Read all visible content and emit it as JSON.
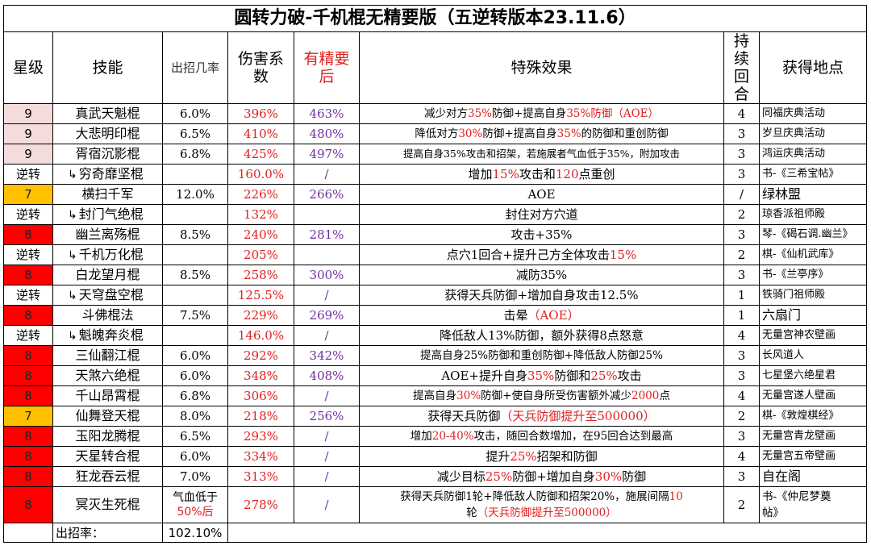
{
  "title": "圆转力破-千机棍无精要版（五逆转版本23.11.6）",
  "headers": {
    "star": "星级",
    "skill": "技能",
    "rate": "出招几率",
    "coef": "伤害系数",
    "coef_ess": "有精要后",
    "effect": "特殊效果",
    "duration": "持续回合",
    "source": "获得地点"
  },
  "rows": [
    {
      "star": "9",
      "star_color": "#f4dcdc",
      "skill": "真武天魁棍",
      "sub": false,
      "rate": "6.0%",
      "coef": "396%",
      "coef_ess": "463%",
      "effect_parts": [
        {
          "t": "减少对方"
        },
        {
          "t": "35%",
          "c": "red"
        },
        {
          "t": "防御+提高自身"
        },
        {
          "t": "35%",
          "c": "red"
        },
        {
          "t": "防御（AOE）",
          "c": "red2"
        }
      ],
      "duration": "4",
      "source": "同福庆典活动"
    },
    {
      "star": "9",
      "star_color": "#f4dcdc",
      "skill": "大悲明印棍",
      "sub": false,
      "rate": "6.5%",
      "coef": "410%",
      "coef_ess": "480%",
      "effect_parts": [
        {
          "t": "降低对方"
        },
        {
          "t": "30%",
          "c": "red"
        },
        {
          "t": "防御+提高自身"
        },
        {
          "t": "35%",
          "c": "red"
        },
        {
          "t": "的防御和重创防御"
        }
      ],
      "duration": "3",
      "source": "岁旦庆典活动"
    },
    {
      "star": "9",
      "star_color": "#f4dcdc",
      "skill": "胥宿沉影棍",
      "sub": false,
      "rate": "6.8%",
      "coef": "425%",
      "coef_ess": "497%",
      "effect_parts": [
        {
          "t": "提高自身35%攻击和招架，若施展者气血低于35%，附加攻击"
        }
      ],
      "duration": "3",
      "source": "鸿运庆典活动"
    },
    {
      "star": "逆转",
      "star_color": "#ffffff",
      "skill": "穷奇靡坚棍",
      "sub": true,
      "rate": "",
      "coef": "160.0%",
      "coef_ess": "/",
      "effect_parts": [
        {
          "t": "增加"
        },
        {
          "t": "15%",
          "c": "red"
        },
        {
          "t": "攻击和"
        },
        {
          "t": "120",
          "c": "red"
        },
        {
          "t": "点重创"
        }
      ],
      "duration": "3",
      "source": "书-《三希宝帖》"
    },
    {
      "star": "7",
      "star_color": "#ffc000",
      "skill": "横扫千军",
      "sub": false,
      "rate": "12.0%",
      "coef": "226%",
      "coef_ess": "266%",
      "effect_parts": [
        {
          "t": "AOE"
        }
      ],
      "duration": "/",
      "source": "绿林盟"
    },
    {
      "star": "逆转",
      "star_color": "#ffffff",
      "skill": "封门气绝棍",
      "sub": true,
      "rate": "",
      "coef": "132%",
      "coef_ess": "",
      "effect_parts": [
        {
          "t": "封住对方穴道"
        }
      ],
      "duration": "2",
      "source": "琼香派祖师殿"
    },
    {
      "star": "8",
      "star_color": "#ff0000",
      "skill": "幽兰离殇棍",
      "sub": false,
      "rate": "8.5%",
      "coef": "240%",
      "coef_ess": "281%",
      "effect_parts": [
        {
          "t": "攻击+35%"
        }
      ],
      "duration": "3",
      "source": "琴-《碣石调.幽兰》"
    },
    {
      "star": "逆转",
      "star_color": "#ffffff",
      "skill": "千机万化棍",
      "sub": true,
      "rate": "",
      "coef": "205%",
      "coef_ess": "",
      "effect_parts": [
        {
          "t": "点穴1回合+提升己方全体攻击"
        },
        {
          "t": "15%",
          "c": "red"
        }
      ],
      "duration": "2",
      "source": "棋-《仙机武库》"
    },
    {
      "star": "8",
      "star_color": "#ff0000",
      "skill": "白龙望月棍",
      "sub": false,
      "rate": "8.5%",
      "coef": "258%",
      "coef_ess": "300%",
      "effect_parts": [
        {
          "t": "减防35%"
        }
      ],
      "duration": "3",
      "source": "书-《兰亭序》"
    },
    {
      "star": "逆转",
      "star_color": "#ffffff",
      "skill": "天穹盘空棍",
      "sub": true,
      "rate": "",
      "coef": "125.5%",
      "coef_ess": "/",
      "effect_parts": [
        {
          "t": "获得天兵防御+增加自身攻击12.5%"
        }
      ],
      "duration": "1",
      "source": "铁骑门祖师殿"
    },
    {
      "star": "8",
      "star_color": "#ff0000",
      "skill": "斗佛棍法",
      "sub": false,
      "rate": "7.5%",
      "coef": "229%",
      "coef_ess": "269%",
      "effect_parts": [
        {
          "t": "击晕"
        },
        {
          "t": "（AOE）",
          "c": "red"
        }
      ],
      "duration": "1",
      "source": "六扇门"
    },
    {
      "star": "逆转",
      "star_color": "#ffffff",
      "skill": "魁魄奔炎棍",
      "sub": true,
      "rate": "",
      "coef": "146.0%",
      "coef_ess": "/",
      "effect_parts": [
        {
          "t": "降低敌人13%防御，额外获得8点怒意"
        }
      ],
      "duration": "4",
      "source": "无量宫神农壁画"
    },
    {
      "star": "8",
      "star_color": "#ff0000",
      "skill": "三仙翻江棍",
      "sub": false,
      "rate": "6.0%",
      "coef": "292%",
      "coef_ess": "342%",
      "effect_parts": [
        {
          "t": "提高自身25%防御和重创防御+降低敌人防御25%"
        }
      ],
      "duration": "3",
      "source": "长风道人"
    },
    {
      "star": "8",
      "star_color": "#ff0000",
      "skill": "天煞六绝棍",
      "sub": false,
      "rate": "6.0%",
      "coef": "348%",
      "coef_ess": "408%",
      "effect_parts": [
        {
          "t": "AOE+提升自身"
        },
        {
          "t": "35%",
          "c": "red"
        },
        {
          "t": "防御和"
        },
        {
          "t": "25%",
          "c": "red"
        },
        {
          "t": "攻击"
        }
      ],
      "duration": "3",
      "source": "七星堡六绝星君"
    },
    {
      "star": "8",
      "star_color": "#ff0000",
      "skill": "千山昂霄棍",
      "sub": false,
      "rate": "6.8%",
      "coef": "306%",
      "coef_ess": "/",
      "effect_parts": [
        {
          "t": "提高自身"
        },
        {
          "t": "30%",
          "c": "red"
        },
        {
          "t": "防御+使自身所受伤害额外减少"
        },
        {
          "t": "2000",
          "c": "red"
        },
        {
          "t": "点"
        }
      ],
      "duration": "4",
      "source": "无量宫遂人壁画"
    },
    {
      "star": "7",
      "star_color": "#ffc000",
      "skill": "仙舞登天棍",
      "sub": false,
      "rate": "8.0%",
      "coef": "218%",
      "coef_ess": "256%",
      "effect_parts": [
        {
          "t": "获得天兵防御"
        },
        {
          "t": "（天兵防御提升至500000）",
          "c": "red"
        }
      ],
      "duration": "2",
      "source": "棋-《敦煌棋经》"
    },
    {
      "star": "8",
      "star_color": "#ff0000",
      "skill": "玉阳龙腾棍",
      "sub": false,
      "rate": "6.5%",
      "coef": "293%",
      "coef_ess": "/",
      "effect_parts": [
        {
          "t": "增加"
        },
        {
          "t": "20-40%",
          "c": "red"
        },
        {
          "t": "攻击，随回合数增加，在95回合达到最高"
        }
      ],
      "duration": "3",
      "source": "无量宫青龙壁画"
    },
    {
      "star": "8",
      "star_color": "#ff0000",
      "skill": "天星转合棍",
      "sub": false,
      "rate": "6.0%",
      "coef": "334%",
      "coef_ess": "/",
      "effect_parts": [
        {
          "t": "提升"
        },
        {
          "t": "25%",
          "c": "red"
        },
        {
          "t": "招架和防御"
        }
      ],
      "duration": "4",
      "source": "无量宫五帝壁画"
    },
    {
      "star": "8",
      "star_color": "#ff0000",
      "skill": "狂龙吞云棍",
      "sub": false,
      "rate": "7.0%",
      "coef": "313%",
      "coef_ess": "/",
      "effect_parts": [
        {
          "t": "减少目标"
        },
        {
          "t": "25%",
          "c": "red"
        },
        {
          "t": "防御+增加自身"
        },
        {
          "t": "30%",
          "c": "red"
        },
        {
          "t": "防御"
        }
      ],
      "duration": "3",
      "source": "自在阁"
    }
  ],
  "last_row": {
    "star": "8",
    "skill": "冥灭生死棍",
    "rate_a": "气血低于",
    "rate_b": "50%后",
    "coef": "278%",
    "coef_ess": "/",
    "effect_a": "获得天兵防御1轮+降低敌人防御和招架20%，施展间隔",
    "effect_a_red": "10",
    "effect_b1": "轮",
    "effect_b2": "（天兵防御提升至500000）",
    "duration": "2",
    "source_a": "书-《仲尼梦奠",
    "source_b": "帖》"
  },
  "footer": {
    "label": "出招率：",
    "value": "102.10%"
  },
  "colors": {
    "red": "#e02020",
    "purple": "#7030a0",
    "star_pink": "#f4dcdc",
    "star_red": "#ff0000",
    "star_orange": "#ffc000"
  }
}
